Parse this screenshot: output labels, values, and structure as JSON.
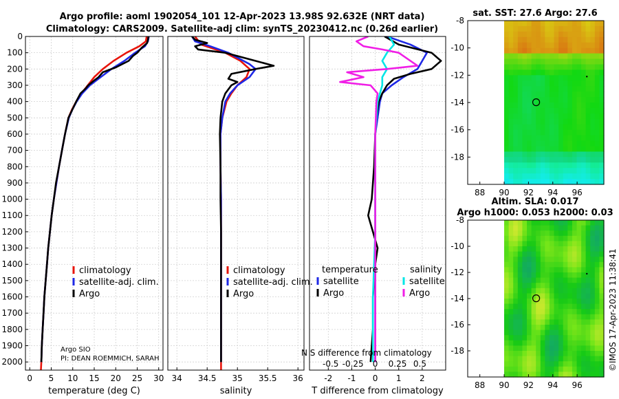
{
  "titles": {
    "line1": "Argo profile: aoml 1902054_101 12-Apr-2023 13.98S 92.632E (NRT data)",
    "line2": "Climatology: CARS2009. Satellite-adj clim: synTS_20230412.nc (0.26d earlier)",
    "sst": "sat. SST: 27.6 Argo: 27.6",
    "sla1": "Altim. SLA: 0.017",
    "sla2": "Argo h1000: 0.053 h2000: 0.03"
  },
  "credit": {
    "line1": "Argo SIO",
    "line2": "PI: DEAN ROEMMICH, SARAH",
    "overflow": "N S difference from climatology",
    "stamp": "©IMOS 17-Apr-2023 11:38:41"
  },
  "colors": {
    "clim": "#e8140a",
    "sat": "#1e28e6",
    "argo": "#000000",
    "sal_sat": "#00e6e6",
    "sal_argo": "#f01ee6",
    "grid": "#d0d0d0"
  },
  "chart_data": [
    {
      "type": "line",
      "id": "temperature",
      "xlabel": "temperature (deg C)",
      "xlim": [
        -1,
        31
      ],
      "ylim": [
        2050,
        0
      ],
      "xticks": [
        0,
        5,
        10,
        15,
        20,
        25,
        30
      ],
      "yticks": [
        0,
        100,
        200,
        300,
        400,
        500,
        600,
        700,
        800,
        900,
        1000,
        1100,
        1200,
        1300,
        1400,
        1500,
        1600,
        1700,
        1800,
        1900,
        2000
      ],
      "legend": [
        "climatology",
        "satellite-adj. clim.",
        "Argo"
      ],
      "series": [
        {
          "name": "climatology",
          "color": "clim",
          "points": [
            [
              27.2,
              0
            ],
            [
              27.0,
              30
            ],
            [
              25.5,
              60
            ],
            [
              22.5,
              100
            ],
            [
              19.5,
              150
            ],
            [
              17,
              200
            ],
            [
              15,
              250
            ],
            [
              13.5,
              300
            ],
            [
              12,
              350
            ],
            [
              10.8,
              400
            ],
            [
              9.8,
              450
            ],
            [
              9,
              500
            ],
            [
              8.2,
              600
            ],
            [
              7.5,
              700
            ],
            [
              6.8,
              800
            ],
            [
              6.2,
              900
            ],
            [
              5.6,
              1000
            ],
            [
              5.1,
              1100
            ],
            [
              4.7,
              1200
            ],
            [
              4.3,
              1300
            ],
            [
              4,
              1400
            ],
            [
              3.7,
              1500
            ],
            [
              3.4,
              1600
            ],
            [
              3.2,
              1700
            ],
            [
              3,
              1800
            ],
            [
              2.8,
              1900
            ],
            [
              2.7,
              2000
            ],
            [
              2.6,
              2050
            ]
          ]
        },
        {
          "name": "satellite-adj. clim.",
          "color": "sat",
          "points": [
            [
              27.7,
              0
            ],
            [
              27.5,
              30
            ],
            [
              26.8,
              60
            ],
            [
              24.5,
              100
            ],
            [
              22,
              150
            ],
            [
              19,
              200
            ],
            [
              16.5,
              250
            ],
            [
              14,
              300
            ],
            [
              12.2,
              350
            ],
            [
              10.9,
              400
            ],
            [
              9.9,
              450
            ],
            [
              9.1,
              500
            ],
            [
              8.2,
              600
            ],
            [
              7.5,
              700
            ],
            [
              6.8,
              800
            ],
            [
              6.2,
              900
            ],
            [
              5.6,
              1000
            ],
            [
              5.1,
              1100
            ],
            [
              4.7,
              1200
            ],
            [
              4.3,
              1300
            ],
            [
              4,
              1400
            ],
            [
              3.7,
              1500
            ],
            [
              3.4,
              1600
            ],
            [
              3.2,
              1700
            ],
            [
              3,
              1800
            ],
            [
              2.8,
              1900
            ],
            [
              2.7,
              2000
            ]
          ]
        },
        {
          "name": "Argo",
          "color": "argo",
          "points": [
            [
              27.6,
              0
            ],
            [
              27.5,
              20
            ],
            [
              27.3,
              40
            ],
            [
              26,
              70
            ],
            [
              25,
              100
            ],
            [
              24,
              120
            ],
            [
              23,
              150
            ],
            [
              20,
              190
            ],
            [
              17,
              220
            ],
            [
              16,
              250
            ],
            [
              15,
              270
            ],
            [
              13.6,
              300
            ],
            [
              13,
              320
            ],
            [
              11.8,
              350
            ],
            [
              10.8,
              400
            ],
            [
              9.9,
              450
            ],
            [
              9,
              500
            ],
            [
              8.2,
              600
            ],
            [
              7.5,
              700
            ],
            [
              6.8,
              800
            ],
            [
              6.1,
              900
            ],
            [
              5.6,
              1000
            ],
            [
              5.1,
              1100
            ],
            [
              4.7,
              1200
            ],
            [
              4.3,
              1300
            ],
            [
              4,
              1400
            ],
            [
              3.7,
              1500
            ],
            [
              3.4,
              1600
            ],
            [
              3.2,
              1700
            ],
            [
              3,
              1800
            ],
            [
              2.8,
              1900
            ],
            [
              2.7,
              2000
            ]
          ]
        }
      ]
    },
    {
      "type": "line",
      "id": "salinity",
      "xlabel": "salinity",
      "xlim": [
        33.85,
        36.1
      ],
      "ylim": [
        2050,
        0
      ],
      "xticks": [
        34,
        34.5,
        35,
        35.5,
        36
      ],
      "legend": [
        "climatology",
        "satellite-adj. clim.",
        "Argo"
      ],
      "series": [
        {
          "name": "climatology",
          "color": "clim",
          "points": [
            [
              34.3,
              0
            ],
            [
              34.4,
              50
            ],
            [
              34.8,
              100
            ],
            [
              35.05,
              150
            ],
            [
              35.2,
              200
            ],
            [
              35.15,
              250
            ],
            [
              35.0,
              300
            ],
            [
              34.9,
              350
            ],
            [
              34.82,
              400
            ],
            [
              34.75,
              500
            ],
            [
              34.72,
              600
            ],
            [
              34.72,
              800
            ],
            [
              34.73,
              1000
            ],
            [
              34.73,
              1200
            ],
            [
              34.73,
              1400
            ],
            [
              34.73,
              1600
            ],
            [
              34.73,
              1800
            ],
            [
              34.73,
              2000
            ],
            [
              34.73,
              2050
            ]
          ]
        },
        {
          "name": "satellite-adj. clim.",
          "color": "sat",
          "points": [
            [
              34.25,
              0
            ],
            [
              34.3,
              30
            ],
            [
              34.55,
              60
            ],
            [
              34.85,
              100
            ],
            [
              35.2,
              170
            ],
            [
              35.3,
              200
            ],
            [
              35.2,
              250
            ],
            [
              35.0,
              300
            ],
            [
              34.88,
              350
            ],
            [
              34.8,
              400
            ],
            [
              34.75,
              500
            ],
            [
              34.72,
              600
            ],
            [
              34.72,
              800
            ],
            [
              34.73,
              1000
            ],
            [
              34.73,
              1200
            ],
            [
              34.73,
              1400
            ],
            [
              34.73,
              1600
            ],
            [
              34.73,
              1800
            ],
            [
              34.73,
              2000
            ]
          ]
        },
        {
          "name": "Argo",
          "color": "argo",
          "points": [
            [
              34.25,
              0
            ],
            [
              34.3,
              20
            ],
            [
              34.5,
              40
            ],
            [
              34.3,
              60
            ],
            [
              34.35,
              80
            ],
            [
              34.8,
              100
            ],
            [
              35.3,
              150
            ],
            [
              35.6,
              180
            ],
            [
              35.3,
              200
            ],
            [
              34.9,
              230
            ],
            [
              34.85,
              260
            ],
            [
              35.0,
              280
            ],
            [
              34.9,
              300
            ],
            [
              34.8,
              350
            ],
            [
              34.75,
              400
            ],
            [
              34.72,
              500
            ],
            [
              34.71,
              600
            ],
            [
              34.72,
              800
            ],
            [
              34.72,
              1000
            ],
            [
              34.73,
              1200
            ],
            [
              34.73,
              1400
            ],
            [
              34.73,
              1600
            ],
            [
              34.73,
              1800
            ],
            [
              34.73,
              2000
            ]
          ]
        }
      ]
    },
    {
      "type": "line",
      "id": "difference",
      "xlabel": "T difference from climatology",
      "xlim": [
        -2.8,
        3
      ],
      "ylim": [
        2050,
        0
      ],
      "xticks": [
        -2,
        -1,
        0,
        1,
        2
      ],
      "secondary_xticks": [
        "-0.5",
        "-0.25",
        "0",
        "0.25",
        "0.5"
      ],
      "legend_titles": [
        "temperature",
        "salinity"
      ],
      "legend": [
        "satellite",
        "Argo",
        "satellite",
        "Argo"
      ],
      "series": [
        {
          "name": "temperature satellite",
          "color": "sat",
          "points": [
            [
              0.5,
              0
            ],
            [
              1.5,
              50
            ],
            [
              2.2,
              100
            ],
            [
              2.0,
              150
            ],
            [
              1.8,
              200
            ],
            [
              1.2,
              250
            ],
            [
              0.7,
              300
            ],
            [
              0.3,
              350
            ],
            [
              0.2,
              400
            ],
            [
              0.1,
              500
            ],
            [
              0,
              600
            ],
            [
              0,
              2000
            ]
          ]
        },
        {
          "name": "temperature Argo",
          "color": "argo",
          "points": [
            [
              0.4,
              0
            ],
            [
              1.0,
              50
            ],
            [
              2.4,
              100
            ],
            [
              2.8,
              150
            ],
            [
              2.4,
              200
            ],
            [
              1.5,
              230
            ],
            [
              0.8,
              260
            ],
            [
              0.5,
              300
            ],
            [
              0.3,
              350
            ],
            [
              0.15,
              400
            ],
            [
              0.05,
              500
            ],
            [
              0,
              600
            ],
            [
              -0.05,
              800
            ],
            [
              -0.15,
              1000
            ],
            [
              -0.3,
              1100
            ],
            [
              -0.1,
              1200
            ],
            [
              0.1,
              1300
            ],
            [
              0,
              1400
            ],
            [
              -0.1,
              1600
            ],
            [
              -0.1,
              1800
            ],
            [
              -0.2,
              2000
            ]
          ]
        },
        {
          "name": "salinity satellite",
          "color": "sal_sat",
          "points": [
            [
              0.6,
              0
            ],
            [
              0.8,
              50
            ],
            [
              0.5,
              100
            ],
            [
              0.3,
              150
            ],
            [
              0.5,
              200
            ],
            [
              0.3,
              250
            ],
            [
              0.3,
              300
            ],
            [
              0.1,
              400
            ],
            [
              0,
              600
            ],
            [
              0,
              1200
            ],
            [
              -0.1,
              1600
            ],
            [
              -0.1,
              2000
            ]
          ]
        },
        {
          "name": "salinity Argo",
          "color": "sal_argo",
          "points": [
            [
              -0.3,
              0
            ],
            [
              -0.8,
              30
            ],
            [
              -0.5,
              60
            ],
            [
              0.3,
              80
            ],
            [
              1.0,
              100
            ],
            [
              1.8,
              180
            ],
            [
              0.5,
              200
            ],
            [
              -1.2,
              220
            ],
            [
              -0.5,
              250
            ],
            [
              -1.5,
              280
            ],
            [
              -0.2,
              300
            ],
            [
              0.1,
              350
            ],
            [
              0.05,
              400
            ],
            [
              0,
              600
            ],
            [
              0,
              2000
            ]
          ]
        }
      ]
    },
    {
      "type": "heatmap",
      "id": "sst_map",
      "xticks": [
        88,
        90,
        92,
        94,
        96
      ],
      "yticks": [
        -8,
        -10,
        -12,
        -14,
        -16,
        -18
      ],
      "xlim": [
        87,
        98.2
      ],
      "ylim": [
        -20,
        -8
      ],
      "data_xlim": [
        90,
        98.2
      ],
      "marker": [
        92.632,
        -13.98
      ]
    },
    {
      "type": "heatmap",
      "id": "sla_map",
      "xticks": [
        88,
        90,
        92,
        94,
        96
      ],
      "yticks": [
        -8,
        -10,
        -12,
        -14,
        -16,
        -18
      ],
      "xlim": [
        87,
        98.2
      ],
      "ylim": [
        -20,
        -8
      ],
      "data_xlim": [
        90,
        98.2
      ],
      "marker": [
        92.632,
        -13.98
      ]
    }
  ]
}
